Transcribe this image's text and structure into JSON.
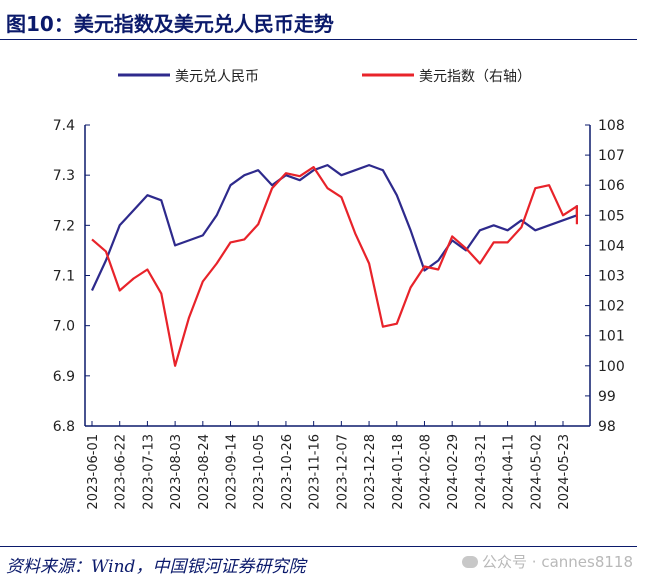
{
  "header": {
    "title": "图10：美元指数及美元兑人民币走势"
  },
  "footer": {
    "source": "资料来源：Wind，中国银河证券研究院",
    "watermark": "公众号 · cannes8118"
  },
  "colors": {
    "cny": "#2e2a8c",
    "dxy": "#e8232a",
    "frame": "#0b1a6b"
  },
  "chart_data": {
    "type": "line",
    "legend_placement": "top",
    "grid": false,
    "x_ticks": [
      "2023-06-01",
      "2023-06-22",
      "2023-07-13",
      "2023-08-03",
      "2023-08-24",
      "2023-09-14",
      "2023-10-05",
      "2023-10-26",
      "2023-11-16",
      "2023-12-07",
      "2023-12-28",
      "2024-01-18",
      "2024-02-08",
      "2024-02-29",
      "2024-03-21",
      "2024-04-11",
      "2024-05-02",
      "2024-05-23"
    ],
    "y_left": {
      "min": 6.8,
      "max": 7.4,
      "ticks": [
        "6.8",
        "6.9",
        "7.0",
        "7.1",
        "7.2",
        "7.3",
        "7.4"
      ]
    },
    "y_right": {
      "min": 98,
      "max": 108,
      "ticks": [
        "98",
        "99",
        "100",
        "101",
        "102",
        "103",
        "104",
        "105",
        "106",
        "107",
        "108"
      ]
    },
    "series": [
      {
        "name": "美元兑人民币",
        "axis": "left",
        "x": [
          0,
          0.5,
          1,
          1.5,
          2,
          2.5,
          3,
          3.5,
          4,
          4.5,
          5,
          5.5,
          6,
          6.5,
          7,
          7.5,
          8,
          8.5,
          9,
          9.5,
          10,
          10.5,
          11,
          11.5,
          12,
          12.5,
          13,
          13.5,
          14,
          14.5,
          15,
          15.5,
          16,
          16.5,
          17,
          17.5,
          17.5
        ],
        "y": [
          7.07,
          7.13,
          7.2,
          7.23,
          7.26,
          7.25,
          7.16,
          7.17,
          7.18,
          7.22,
          7.28,
          7.3,
          7.31,
          7.28,
          7.3,
          7.29,
          7.31,
          7.32,
          7.3,
          7.31,
          7.32,
          7.31,
          7.26,
          7.19,
          7.11,
          7.13,
          7.17,
          7.15,
          7.19,
          7.2,
          7.19,
          7.21,
          7.19,
          7.2,
          7.21,
          7.22,
          7.24
        ]
      },
      {
        "name": "美元指数（右轴）",
        "axis": "right",
        "x": [
          0,
          0.5,
          1,
          1.5,
          2,
          2.5,
          3,
          3.5,
          4,
          4.5,
          5,
          5.5,
          6,
          6.5,
          7,
          7.5,
          8,
          8.5,
          9,
          9.5,
          10,
          10.5,
          11,
          11.5,
          12,
          12.5,
          13,
          13.5,
          14,
          14.5,
          15,
          15.5,
          16,
          16.5,
          17,
          17.5,
          17.5
        ],
        "y": [
          104.2,
          103.8,
          102.5,
          102.9,
          103.2,
          102.4,
          100.0,
          101.6,
          102.8,
          103.4,
          104.1,
          104.2,
          104.7,
          105.9,
          106.4,
          106.3,
          106.6,
          105.9,
          105.6,
          104.4,
          103.4,
          101.3,
          101.4,
          102.6,
          103.3,
          103.2,
          104.3,
          103.9,
          103.4,
          104.1,
          104.1,
          104.6,
          105.9,
          106.0,
          105.0,
          105.3,
          104.7
        ]
      }
    ]
  }
}
